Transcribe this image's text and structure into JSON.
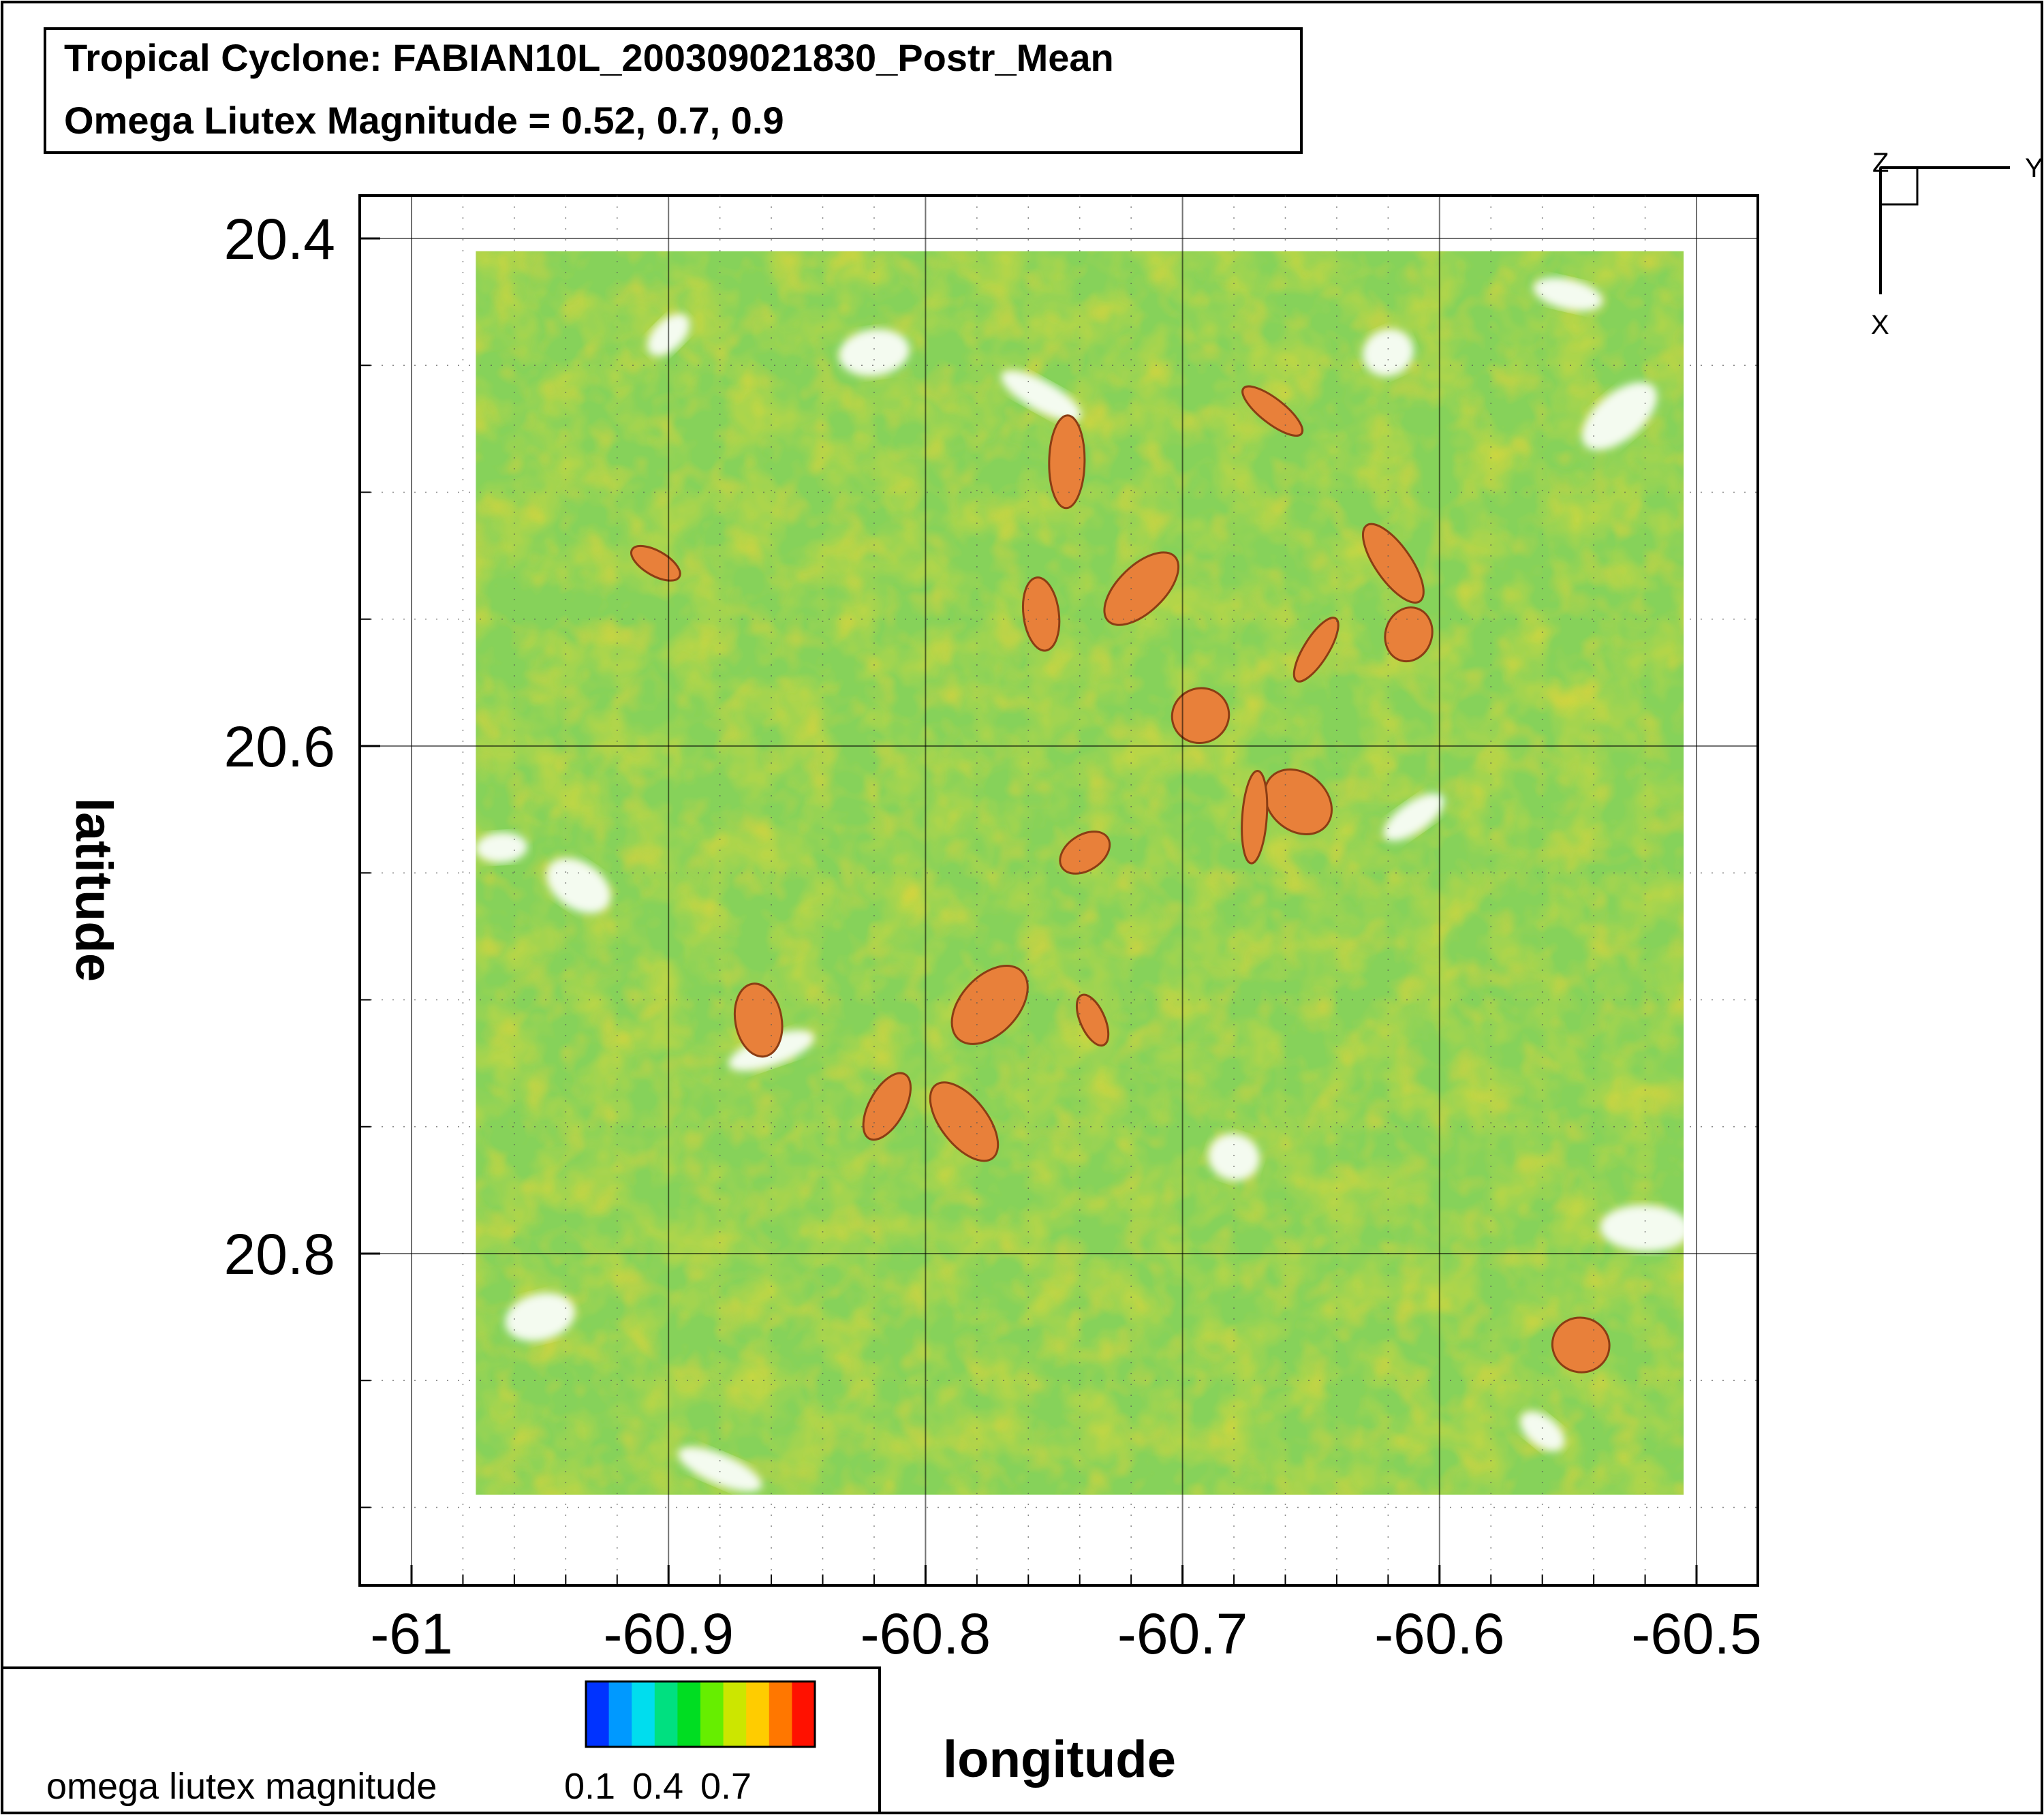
{
  "chart_data": {
    "type": "heatmap",
    "title_lines": [
      "Tropical Cyclone: FABIAN10L_200309021830_Postr_Mean",
      "Omega Liutex Magnitude = 0.52, 0.7, 0.9"
    ],
    "xlabel": "longitude",
    "ylabel": "latitude",
    "xlim": [
      -61.0,
      -60.5
    ],
    "ylim": [
      20.4,
      20.9
    ],
    "y_inverted": true,
    "x_ticks": [
      -61.0,
      -60.9,
      -60.8,
      -60.7,
      -60.6,
      -60.5
    ],
    "x_tick_labels": [
      "-61",
      "-60.9",
      "-60.8",
      "-60.7",
      "-60.6",
      "-60.5"
    ],
    "y_ticks": [
      20.4,
      20.6,
      20.8
    ],
    "y_tick_labels": [
      "20.4",
      "20.6",
      "20.8"
    ],
    "grid": true,
    "data_extent": {
      "lon": [
        -60.975,
        -60.505
      ],
      "lat": [
        20.405,
        20.895
      ]
    },
    "iso_levels": [
      0.52,
      0.7,
      0.9
    ],
    "iso_colors": [
      "#66cc55",
      "#cfd83a",
      "#e8803a"
    ],
    "legend": {
      "title": "omega liutex magnitude",
      "tick_labels": [
        "0.1",
        "0.4",
        "0.7"
      ],
      "colors": [
        "#0033ff",
        "#0099ff",
        "#00ddee",
        "#00e080",
        "#00dd22",
        "#66ee00",
        "#cce600",
        "#ffcc00",
        "#ff7700",
        "#ff1100"
      ],
      "placement": "bottom-left"
    },
    "axes_triad": {
      "horizontal": "Y",
      "vertical": "X",
      "origin": "Z"
    },
    "features": {
      "high_cells": [
        {
          "lon": -60.905,
          "lat": 20.528
        },
        {
          "lon": -60.755,
          "lat": 20.548
        },
        {
          "lon": -60.716,
          "lat": 20.538
        },
        {
          "lon": -60.693,
          "lat": 20.588
        },
        {
          "lon": -60.648,
          "lat": 20.562
        },
        {
          "lon": -60.618,
          "lat": 20.528
        },
        {
          "lon": -60.612,
          "lat": 20.556
        },
        {
          "lon": -60.655,
          "lat": 20.622
        },
        {
          "lon": -60.672,
          "lat": 20.628
        },
        {
          "lon": -60.738,
          "lat": 20.642
        },
        {
          "lon": -60.865,
          "lat": 20.708
        },
        {
          "lon": -60.775,
          "lat": 20.702
        },
        {
          "lon": -60.735,
          "lat": 20.708
        },
        {
          "lon": -60.815,
          "lat": 20.742
        },
        {
          "lon": -60.785,
          "lat": 20.748
        },
        {
          "lon": -60.545,
          "lat": 20.836
        },
        {
          "lon": -60.665,
          "lat": 20.468
        },
        {
          "lon": -60.745,
          "lat": 20.488
        }
      ],
      "clear_gaps": [
        {
          "lon": -60.9,
          "lat": 20.438
        },
        {
          "lon": -60.82,
          "lat": 20.445
        },
        {
          "lon": -60.755,
          "lat": 20.462
        },
        {
          "lon": -60.62,
          "lat": 20.445
        },
        {
          "lon": -60.55,
          "lat": 20.422
        },
        {
          "lon": -60.53,
          "lat": 20.47
        },
        {
          "lon": -60.965,
          "lat": 20.64
        },
        {
          "lon": -60.935,
          "lat": 20.655
        },
        {
          "lon": -60.86,
          "lat": 20.72
        },
        {
          "lon": -60.68,
          "lat": 20.762
        },
        {
          "lon": -60.61,
          "lat": 20.628
        },
        {
          "lon": -60.52,
          "lat": 20.79
        },
        {
          "lon": -60.56,
          "lat": 20.87
        },
        {
          "lon": -60.95,
          "lat": 20.825
        },
        {
          "lon": -60.88,
          "lat": 20.885
        }
      ]
    }
  }
}
